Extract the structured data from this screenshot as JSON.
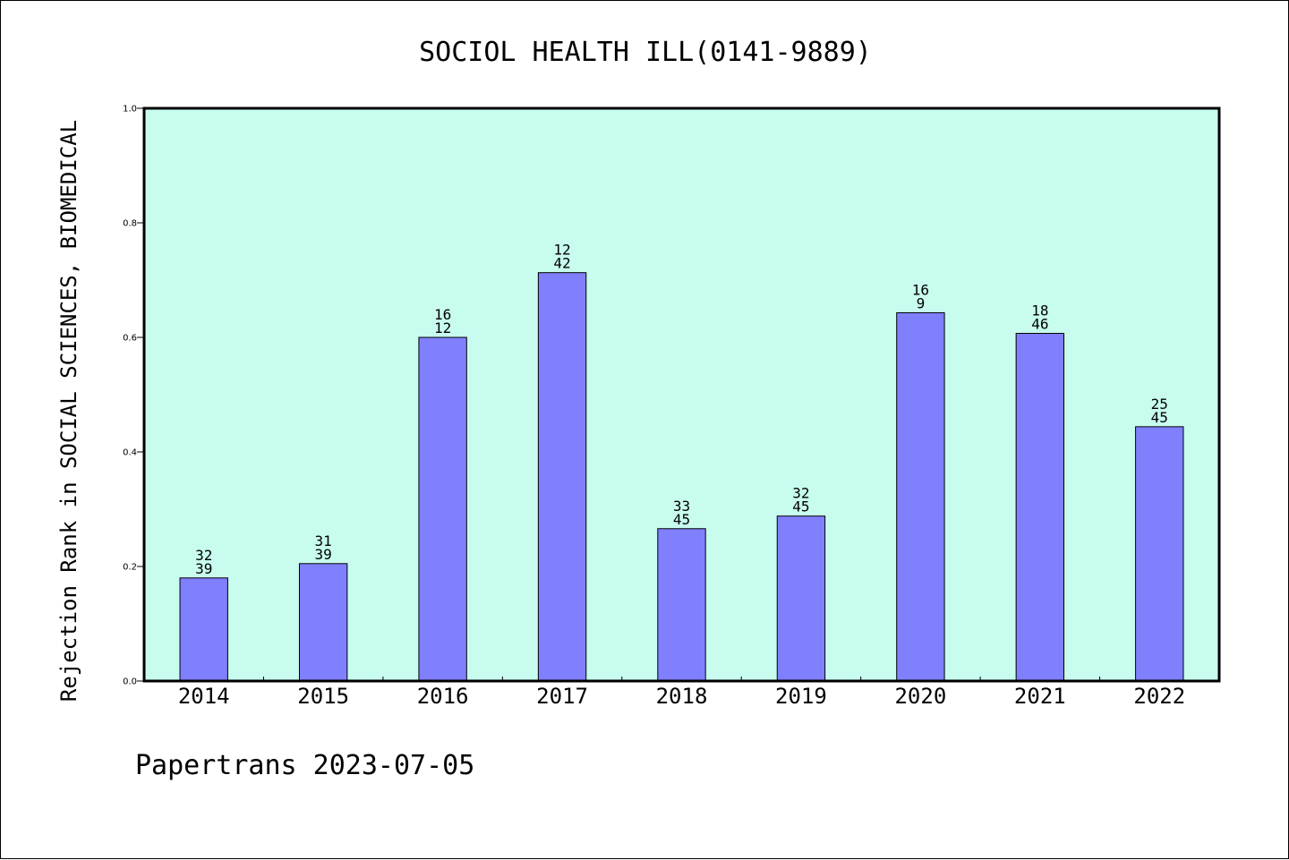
{
  "chart_data": {
    "type": "bar",
    "title": "SOCIOL HEALTH ILL(0141-9889)",
    "ylabel": "Rejection Rank in SOCIAL SCIENCES, BIOMEDICAL",
    "xlabel": "",
    "categories": [
      "2014",
      "2015",
      "2016",
      "2017",
      "2018",
      "2019",
      "2020",
      "2021",
      "2022"
    ],
    "values": [
      0.18,
      0.205,
      0.6,
      0.713,
      0.266,
      0.288,
      0.643,
      0.607,
      0.444
    ],
    "bar_labels": [
      [
        "32",
        "39"
      ],
      [
        "31",
        "39"
      ],
      [
        "16",
        "12"
      ],
      [
        "12",
        "42"
      ],
      [
        "33",
        "45"
      ],
      [
        "32",
        "45"
      ],
      [
        "16",
        "9"
      ],
      [
        "18",
        "46"
      ],
      [
        "25",
        "45"
      ]
    ],
    "ylim": [
      0,
      1.0
    ],
    "yticks": [
      "0.0",
      "0.2",
      "0.4",
      "0.6",
      "0.8",
      "1.0"
    ],
    "grid": false,
    "colors": {
      "plot_background": "#c8fcef",
      "bar_fill": "#8080ff",
      "bar_stroke": "#000000"
    }
  },
  "footer": "Papertrans 2023-07-05"
}
